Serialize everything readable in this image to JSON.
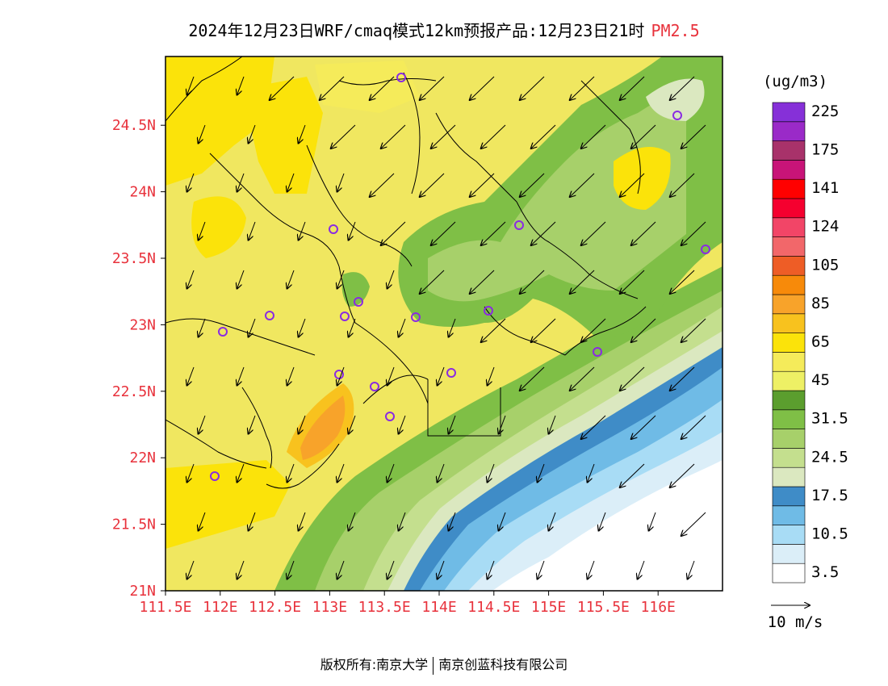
{
  "title": {
    "main": "2024年12月23日WRF/cmaq模式12km预报产品:12月23日21时",
    "variable": "PM2.5"
  },
  "axes": {
    "x_ticks": [
      "111.5E",
      "112E",
      "112.5E",
      "113E",
      "113.5E",
      "114E",
      "114.5E",
      "115E",
      "115.5E",
      "116E"
    ],
    "y_ticks": [
      "21N",
      "21.5N",
      "22N",
      "22.5N",
      "23N",
      "23.5N",
      "24N",
      "24.5N"
    ]
  },
  "colorbar": {
    "unit": "(ug/m3)",
    "colors": [
      "#ffffff",
      "#dbeef8",
      "#a8dcf5",
      "#6fbbe6",
      "#3f8cc7",
      "#dbe8c0",
      "#c4df8e",
      "#a7d06a",
      "#7fbf46",
      "#5b9e2e",
      "#eef065",
      "#f5eb5a",
      "#fbe30a",
      "#f8c21e",
      "#f8a32a",
      "#f78a0a",
      "#ee5d26",
      "#f2676a",
      "#f24567",
      "#f5002f",
      "#ff0000",
      "#c81478",
      "#a8326a",
      "#9a2ac8",
      "#8630d8"
    ],
    "labels": [
      "3.5",
      "10.5",
      "17.5",
      "24.5",
      "31.5",
      "45",
      "65",
      "85",
      "105",
      "124",
      "141",
      "175",
      "225"
    ]
  },
  "wind_legend": {
    "label": "10 m/s"
  },
  "footer": {
    "copyright": "版权所有:南京大学",
    "company": "南京创蓝科技有限公司"
  }
}
